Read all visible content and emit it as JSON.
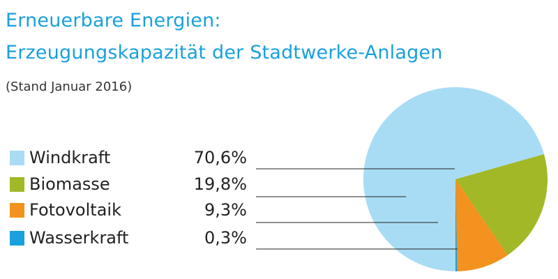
{
  "title_line1": "Erneuerbare Energien:",
  "title_line2": "Erzeugungskapazität der Stadtwerke-Anlagen",
  "subtitle": "(Stand Januar 2016)",
  "chart_data": {
    "type": "pie",
    "categories": [
      "Windkraft",
      "Biomasse",
      "Fotovoltaik",
      "Wasserkraft"
    ],
    "labels": [
      "70,6%",
      "19,8%",
      "9,3%",
      "0,3%"
    ],
    "values": [
      70.6,
      19.8,
      9.3,
      0.3
    ],
    "colors": [
      "#a8dcf4",
      "#a2b826",
      "#f3921f",
      "#1aa0dc"
    ],
    "legend": "left"
  }
}
